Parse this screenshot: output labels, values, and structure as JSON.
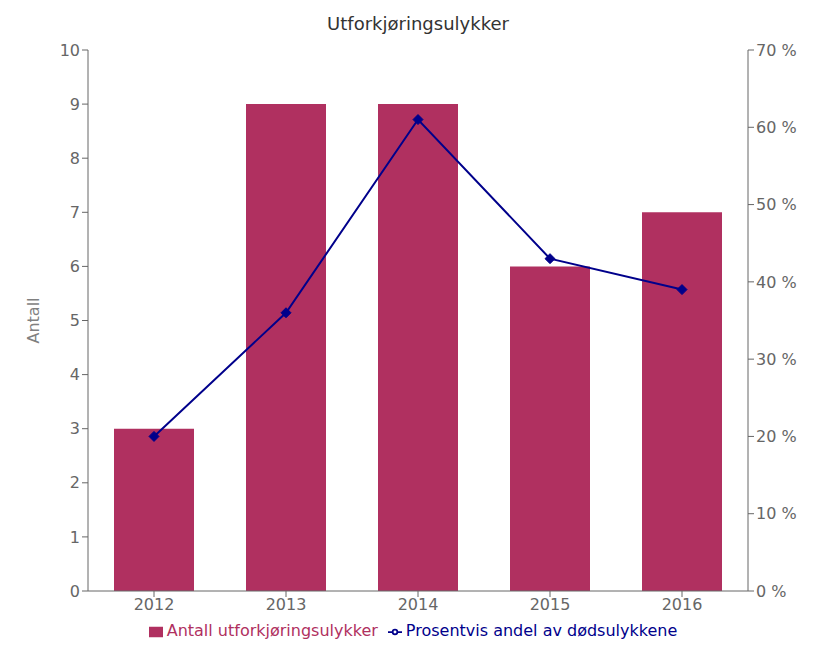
{
  "chart_data": {
    "type": "bar",
    "title": "Utforkjøringsulykker",
    "categories": [
      "2012",
      "2013",
      "2014",
      "2015",
      "2016"
    ],
    "series": [
      {
        "name": "Antall utforkjøringsulykker",
        "type": "bar",
        "color": "#b03060",
        "values": [
          3,
          9,
          9,
          6,
          7
        ]
      },
      {
        "name": "Prosentvis andel av dødsulykkene",
        "type": "line",
        "color": "#00008b",
        "marker": "diamond",
        "axis": "y2",
        "values": [
          20,
          36,
          61,
          43,
          39
        ]
      }
    ],
    "ylabel": "Antall",
    "ylim": [
      0,
      10
    ],
    "yticks": [
      0,
      1,
      2,
      3,
      4,
      5,
      6,
      7,
      8,
      9,
      10
    ],
    "y2lim": [
      0,
      70
    ],
    "y2ticks": [
      {
        "value": 0,
        "label": "0 %"
      },
      {
        "value": 10,
        "label": "10 %"
      },
      {
        "value": 20,
        "label": "20 %"
      },
      {
        "value": 30,
        "label": "30 %"
      },
      {
        "value": 40,
        "label": "40 %"
      },
      {
        "value": 50,
        "label": "50 %"
      },
      {
        "value": 60,
        "label": "60 %"
      },
      {
        "value": 70,
        "label": "70 %"
      }
    ],
    "grid": false,
    "legend": "bottom"
  }
}
